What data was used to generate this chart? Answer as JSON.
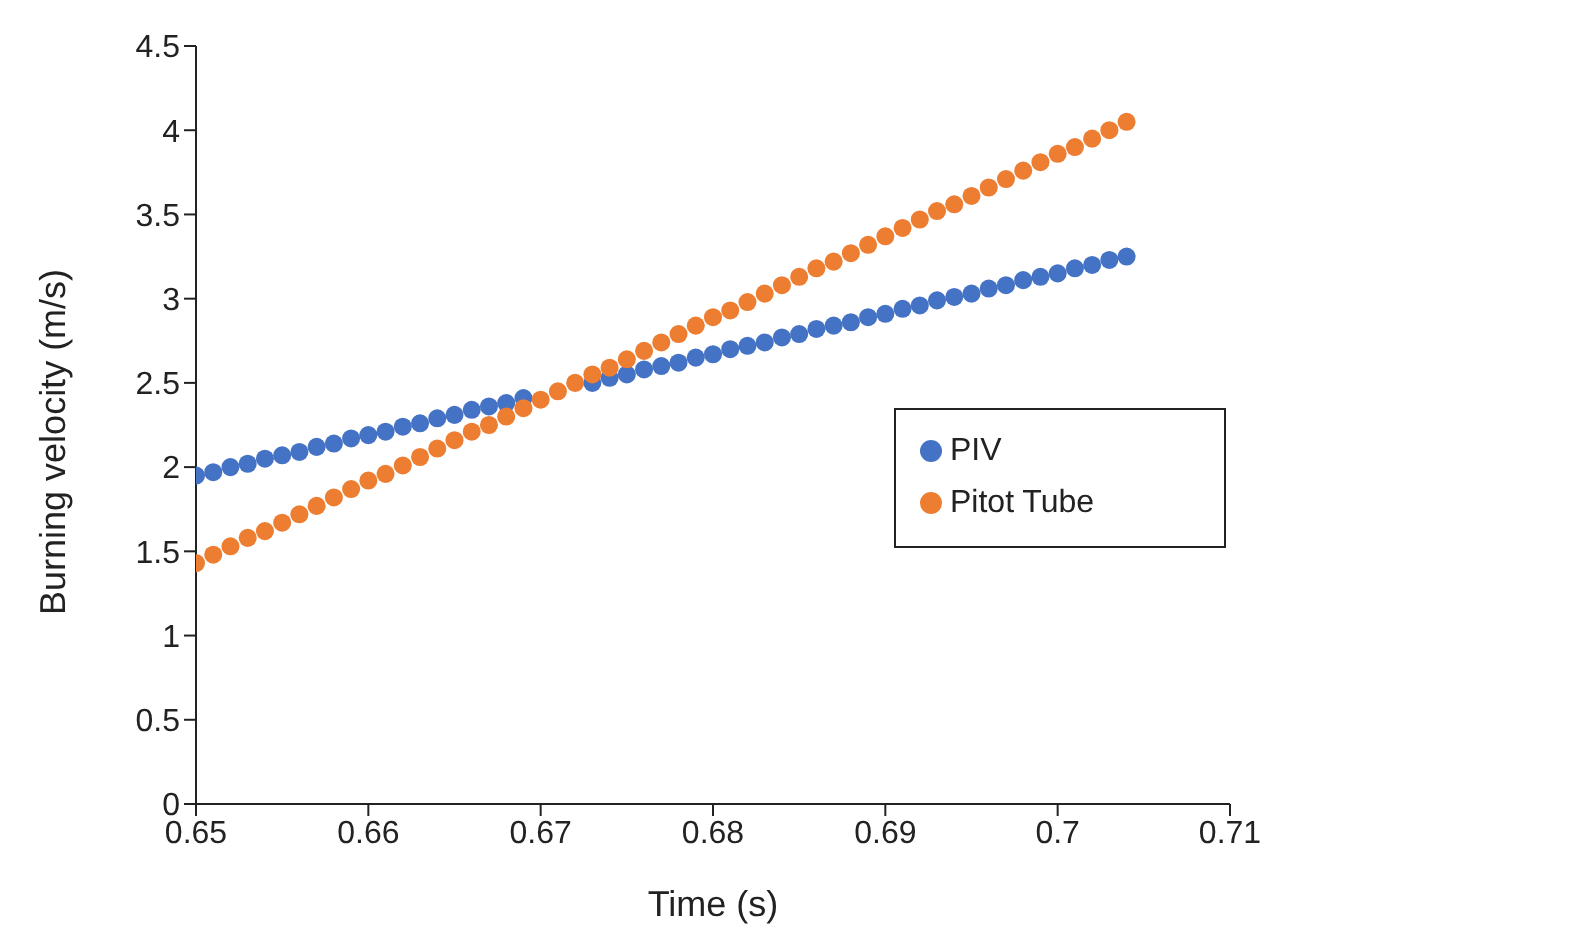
{
  "chart_data": {
    "type": "scatter",
    "xlabel": "Time (s)",
    "ylabel": "Burning velocity (m/s)",
    "x": [
      0.65,
      0.651,
      0.652,
      0.653,
      0.654,
      0.655,
      0.656,
      0.657,
      0.658,
      0.659,
      0.66,
      0.661,
      0.662,
      0.663,
      0.664,
      0.665,
      0.666,
      0.667,
      0.668,
      0.669,
      0.67,
      0.671,
      0.672,
      0.673,
      0.674,
      0.675,
      0.676,
      0.677,
      0.678,
      0.679,
      0.68,
      0.681,
      0.682,
      0.683,
      0.684,
      0.685,
      0.686,
      0.687,
      0.688,
      0.689,
      0.69,
      0.691,
      0.692,
      0.693,
      0.694,
      0.695,
      0.696,
      0.697,
      0.698,
      0.699,
      0.7,
      0.701,
      0.702,
      0.703,
      0.704
    ],
    "series": [
      {
        "name": "PIV",
        "color": "#4472c4",
        "values": [
          1.95,
          1.97,
          2.0,
          2.02,
          2.05,
          2.07,
          2.09,
          2.12,
          2.14,
          2.17,
          2.19,
          2.21,
          2.24,
          2.26,
          2.29,
          2.31,
          2.34,
          2.36,
          2.38,
          2.41,
          null,
          null,
          null,
          2.5,
          2.53,
          2.55,
          2.58,
          2.6,
          2.62,
          2.65,
          2.67,
          2.7,
          2.72,
          2.74,
          2.77,
          2.79,
          2.82,
          2.84,
          2.86,
          2.89,
          2.91,
          2.94,
          2.96,
          2.99,
          3.01,
          3.03,
          3.06,
          3.08,
          3.11,
          3.13,
          3.15,
          3.18,
          3.2,
          3.23,
          3.25
        ]
      },
      {
        "name": "Pitot Tube",
        "color": "#ed7d31",
        "values": [
          1.43,
          1.48,
          1.53,
          1.58,
          1.62,
          1.67,
          1.72,
          1.77,
          1.82,
          1.87,
          1.92,
          1.96,
          2.01,
          2.06,
          2.11,
          2.16,
          2.21,
          2.25,
          2.3,
          2.35,
          2.4,
          2.45,
          2.5,
          2.55,
          2.59,
          2.64,
          2.69,
          2.74,
          2.79,
          2.84,
          2.89,
          2.93,
          2.98,
          3.03,
          3.08,
          3.13,
          3.18,
          3.22,
          3.27,
          3.32,
          3.37,
          3.42,
          3.47,
          3.52,
          3.56,
          3.61,
          3.66,
          3.71,
          3.76,
          3.81,
          3.86,
          3.9,
          3.95,
          4.0,
          4.05
        ]
      }
    ],
    "xlim": [
      0.65,
      0.71
    ],
    "xticks": [
      0.65,
      0.66,
      0.67,
      0.68,
      0.69,
      0.7,
      0.71
    ],
    "ylim": [
      0,
      4.5
    ],
    "yticks": [
      0,
      0.5,
      1,
      1.5,
      2,
      2.5,
      3,
      3.5,
      4,
      4.5
    ],
    "marker": "circle",
    "legend": "right"
  }
}
